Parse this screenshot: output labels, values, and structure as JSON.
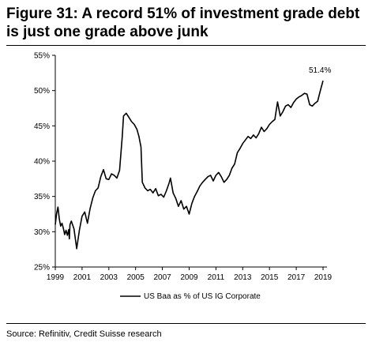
{
  "title": "Figure 31: A record 51% of investment grade debt is just one grade above junk",
  "source": "Source: Refinitiv, Credit Suisse research",
  "chart_data": {
    "type": "line",
    "xlabel": "",
    "ylabel": "",
    "xlim": [
      1999,
      2019.5
    ],
    "ylim": [
      25,
      55
    ],
    "x_ticks": [
      1999,
      2001,
      2003,
      2005,
      2007,
      2009,
      2011,
      2013,
      2015,
      2017,
      2019
    ],
    "y_ticks": [
      25,
      30,
      35,
      40,
      45,
      50,
      55
    ],
    "y_tick_labels": [
      "25%",
      "30%",
      "35%",
      "40%",
      "45%",
      "50%",
      "55%"
    ],
    "grid": false,
    "legend_position": "bottom",
    "annotation": {
      "text": "51.4%",
      "x": 2019.0,
      "y": 51.4
    },
    "series": [
      {
        "name": "US Baa as % of US IG Corporate",
        "color": "#000000",
        "x": [
          1999.0,
          1999.1,
          1999.2,
          1999.3,
          1999.4,
          1999.5,
          1999.6,
          1999.7,
          1999.8,
          1999.9,
          2000.0,
          2000.05,
          2000.1,
          2000.2,
          2000.4,
          2000.6,
          2000.8,
          2001.0,
          2001.2,
          2001.4,
          2001.6,
          2001.8,
          2002.0,
          2002.2,
          2002.4,
          2002.6,
          2002.8,
          2003.0,
          2003.2,
          2003.4,
          2003.6,
          2003.8,
          2004.0,
          2004.1,
          2004.3,
          2004.5,
          2004.7,
          2004.9,
          2005.1,
          2005.25,
          2005.4,
          2005.5,
          2005.7,
          2005.9,
          2006.1,
          2006.3,
          2006.5,
          2006.7,
          2006.9,
          2007.1,
          2007.3,
          2007.5,
          2007.6,
          2007.8,
          2008.0,
          2008.2,
          2008.4,
          2008.6,
          2008.8,
          2009.0,
          2009.2,
          2009.4,
          2009.6,
          2009.8,
          2010.0,
          2010.2,
          2010.4,
          2010.6,
          2010.8,
          2011.0,
          2011.2,
          2011.4,
          2011.6,
          2011.8,
          2012.0,
          2012.2,
          2012.4,
          2012.6,
          2012.8,
          2013.0,
          2013.2,
          2013.4,
          2013.6,
          2013.8,
          2014.0,
          2014.2,
          2014.4,
          2014.6,
          2014.8,
          2015.0,
          2015.2,
          2015.4,
          2015.6,
          2015.8,
          2016.0,
          2016.2,
          2016.4,
          2016.6,
          2016.8,
          2017.0,
          2017.2,
          2017.4,
          2017.6,
          2017.8,
          2018.0,
          2018.2,
          2018.4,
          2018.6,
          2018.8,
          2019.0
        ],
        "y": [
          31.0,
          32.6,
          33.5,
          31.8,
          30.8,
          31.2,
          30.5,
          29.6,
          30.2,
          29.5,
          30.3,
          29.0,
          31.0,
          31.5,
          30.4,
          27.6,
          30.2,
          32.2,
          32.8,
          31.2,
          33.3,
          34.8,
          35.8,
          36.2,
          37.8,
          38.8,
          37.5,
          37.4,
          38.2,
          38.0,
          37.6,
          38.7,
          43.5,
          46.4,
          46.8,
          46.2,
          45.6,
          45.2,
          44.5,
          43.5,
          42.0,
          37.0,
          36.2,
          35.8,
          36.0,
          35.5,
          36.1,
          35.1,
          35.3,
          34.9,
          35.8,
          36.9,
          37.6,
          35.5,
          34.7,
          33.6,
          34.4,
          33.2,
          33.6,
          32.5,
          34.0,
          35.0,
          35.7,
          36.5,
          37.0,
          37.4,
          37.8,
          38.0,
          37.2,
          38.0,
          38.4,
          37.8,
          37.0,
          37.4,
          38.0,
          39.0,
          39.6,
          41.2,
          41.8,
          42.5,
          43.0,
          43.5,
          43.2,
          43.7,
          43.3,
          43.9,
          44.8,
          44.2,
          44.6,
          45.2,
          45.6,
          45.9,
          48.4,
          46.4,
          47.0,
          47.8,
          48.0,
          47.6,
          48.3,
          48.8,
          49.1,
          49.3,
          49.6,
          49.5,
          48.0,
          47.8,
          48.2,
          48.5,
          50.0,
          51.4
        ]
      }
    ]
  }
}
